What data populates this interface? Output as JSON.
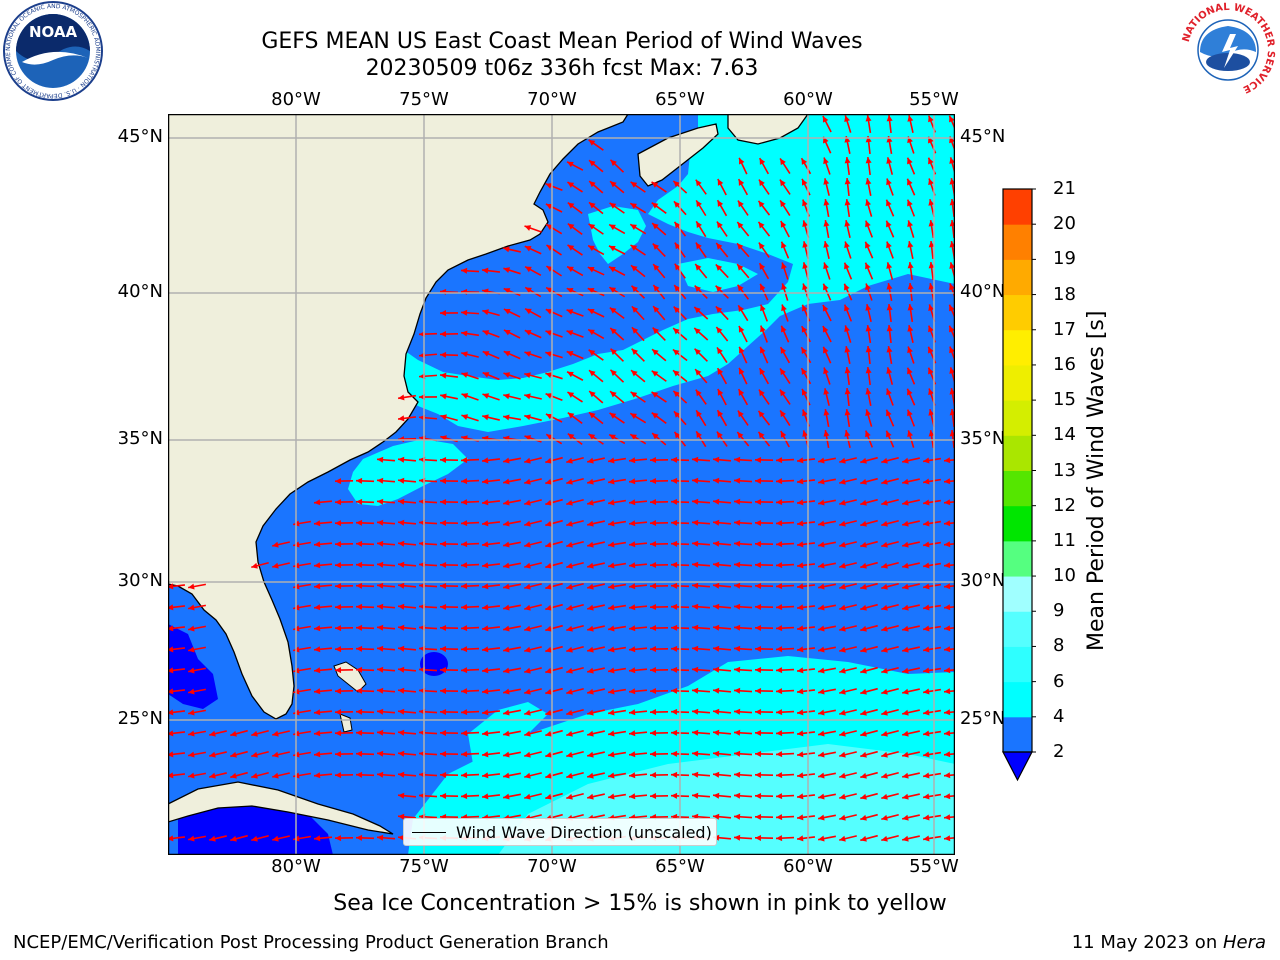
{
  "title": {
    "line1": "GEFS MEAN US East Coast Mean Period of Wind Waves",
    "line2": "20230509 t06z 336h fcst   Max: 7.63"
  },
  "map": {
    "lon_labels": [
      "80°W",
      "75°W",
      "70°W",
      "65°W",
      "60°W",
      "55°W"
    ],
    "lat_labels": [
      "45°N",
      "40°N",
      "35°N",
      "30°N",
      "25°N"
    ],
    "lon_range": [
      -85,
      -54
    ],
    "lat_range": [
      20.5,
      46
    ],
    "colors": {
      "land": "#efefdc",
      "water_deep_blue": "#0000ff",
      "water_blue": "#1a75ff",
      "water_cyan": "#00ffff",
      "water_light_cyan": "#55ffff",
      "arrow": "#ff0000",
      "grid": "#b0b0b0"
    }
  },
  "legend": {
    "label": "Wind Wave Direction (unscaled)"
  },
  "colorbar": {
    "label": "Mean Period of Wind Waves [s]",
    "ticks": [
      "2",
      "4",
      "6",
      "8",
      "9",
      "10",
      "11",
      "12",
      "13",
      "14",
      "15",
      "16",
      "17",
      "18",
      "19",
      "20",
      "21"
    ],
    "levels": [
      2,
      4,
      6,
      8,
      9,
      10,
      11,
      12,
      13,
      14,
      15,
      16,
      17,
      18,
      19,
      20,
      21
    ],
    "colors": [
      "#1a75ff",
      "#00ffff",
      "#2effff",
      "#55ffff",
      "#a0ffff",
      "#55ff80",
      "#00e600",
      "#55e600",
      "#aae600",
      "#d4ee00",
      "#eeee00",
      "#ffee00",
      "#ffcc00",
      "#ffaa00",
      "#ff8000",
      "#ff4000",
      "#ff2000",
      "#ff0000"
    ],
    "extend_color": "#0000ff"
  },
  "subtitle": "Sea Ice Concentration > 15% is shown in pink to yellow",
  "footer": {
    "left": "NCEP/EMC/Verification Post Processing Product Generation Branch",
    "date": "11 May 2023 on ",
    "machine": "Hera"
  },
  "logos": {
    "noaa_text": "NOAA",
    "noaa_ring_text": "NATIONAL OCEANIC AND ATMOSPHERIC ADMINISTRATION · U.S. DEPARTMENT OF COMMERCE",
    "nws_ring_text": "NATIONAL WEATHER SERVICE"
  }
}
